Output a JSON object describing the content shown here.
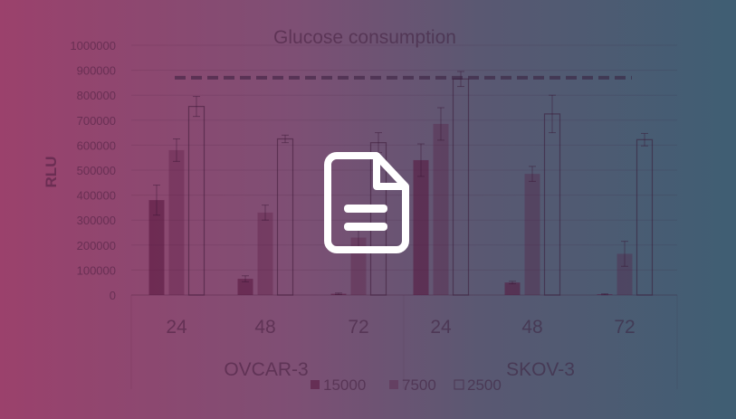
{
  "chart_data": {
    "type": "bar",
    "title": "Glucose consumption",
    "ylabel": "RLU",
    "xlabel": "",
    "ylim": [
      0,
      1000000
    ],
    "yticks": [
      "0",
      "100000",
      "200000",
      "300000",
      "400000",
      "500000",
      "600000",
      "700000",
      "800000",
      "900000",
      "1000000"
    ],
    "groups": [
      "OVCAR-3",
      "SKOV-3"
    ],
    "categories": [
      "24",
      "48",
      "72",
      "24",
      "48",
      "72"
    ],
    "series": [
      {
        "name": "15000",
        "values": [
          380000,
          65000,
          5000,
          540000,
          50000,
          3000
        ],
        "errors": [
          60000,
          12000,
          3000,
          65000,
          5000,
          2000
        ]
      },
      {
        "name": "7500",
        "values": [
          580000,
          330000,
          230000,
          685000,
          485000,
          165000
        ],
        "errors": [
          45000,
          30000,
          40000,
          65000,
          30000,
          50000
        ]
      },
      {
        "name": "2500",
        "values": [
          755000,
          625000,
          610000,
          865000,
          725000,
          622000
        ],
        "errors": [
          40000,
          15000,
          40000,
          30000,
          75000,
          25000
        ]
      }
    ],
    "reference_line": 870000,
    "legend": "bottom",
    "grid": true
  },
  "overlay": {
    "icon": "document-icon",
    "color": "#ffffff"
  },
  "colors": {
    "gradient_left": "#9b416c",
    "gradient_right": "#3f5e73"
  }
}
